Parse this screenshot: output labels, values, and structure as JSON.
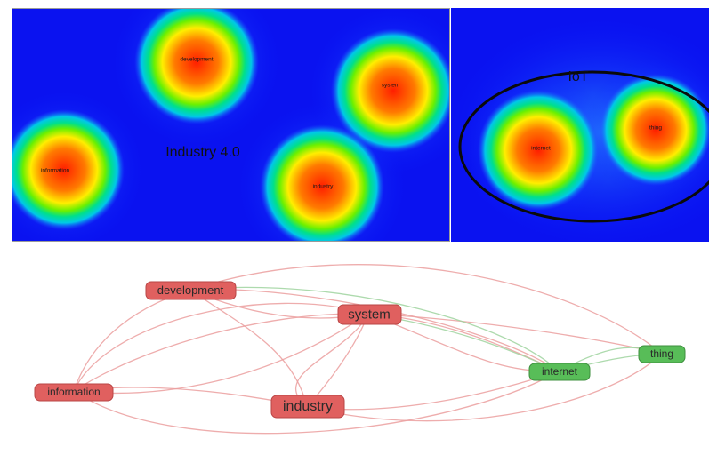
{
  "left_panel": {
    "cluster_label": "Industry 4.0",
    "terms": [
      "development",
      "system",
      "information",
      "industry"
    ]
  },
  "right_panel": {
    "cluster_label": "IoT",
    "terms": [
      "internet",
      "thing"
    ]
  },
  "network": {
    "colors": {
      "cluster_1": "#e0605f",
      "cluster_2": "#58bd58"
    },
    "nodes": [
      {
        "id": "development",
        "label": "development",
        "cluster": 1
      },
      {
        "id": "system",
        "label": "system",
        "cluster": 1
      },
      {
        "id": "information",
        "label": "information",
        "cluster": 1
      },
      {
        "id": "industry",
        "label": "industry",
        "cluster": 1
      },
      {
        "id": "internet",
        "label": "internet",
        "cluster": 2
      },
      {
        "id": "thing",
        "label": "thing",
        "cluster": 2
      }
    ]
  }
}
